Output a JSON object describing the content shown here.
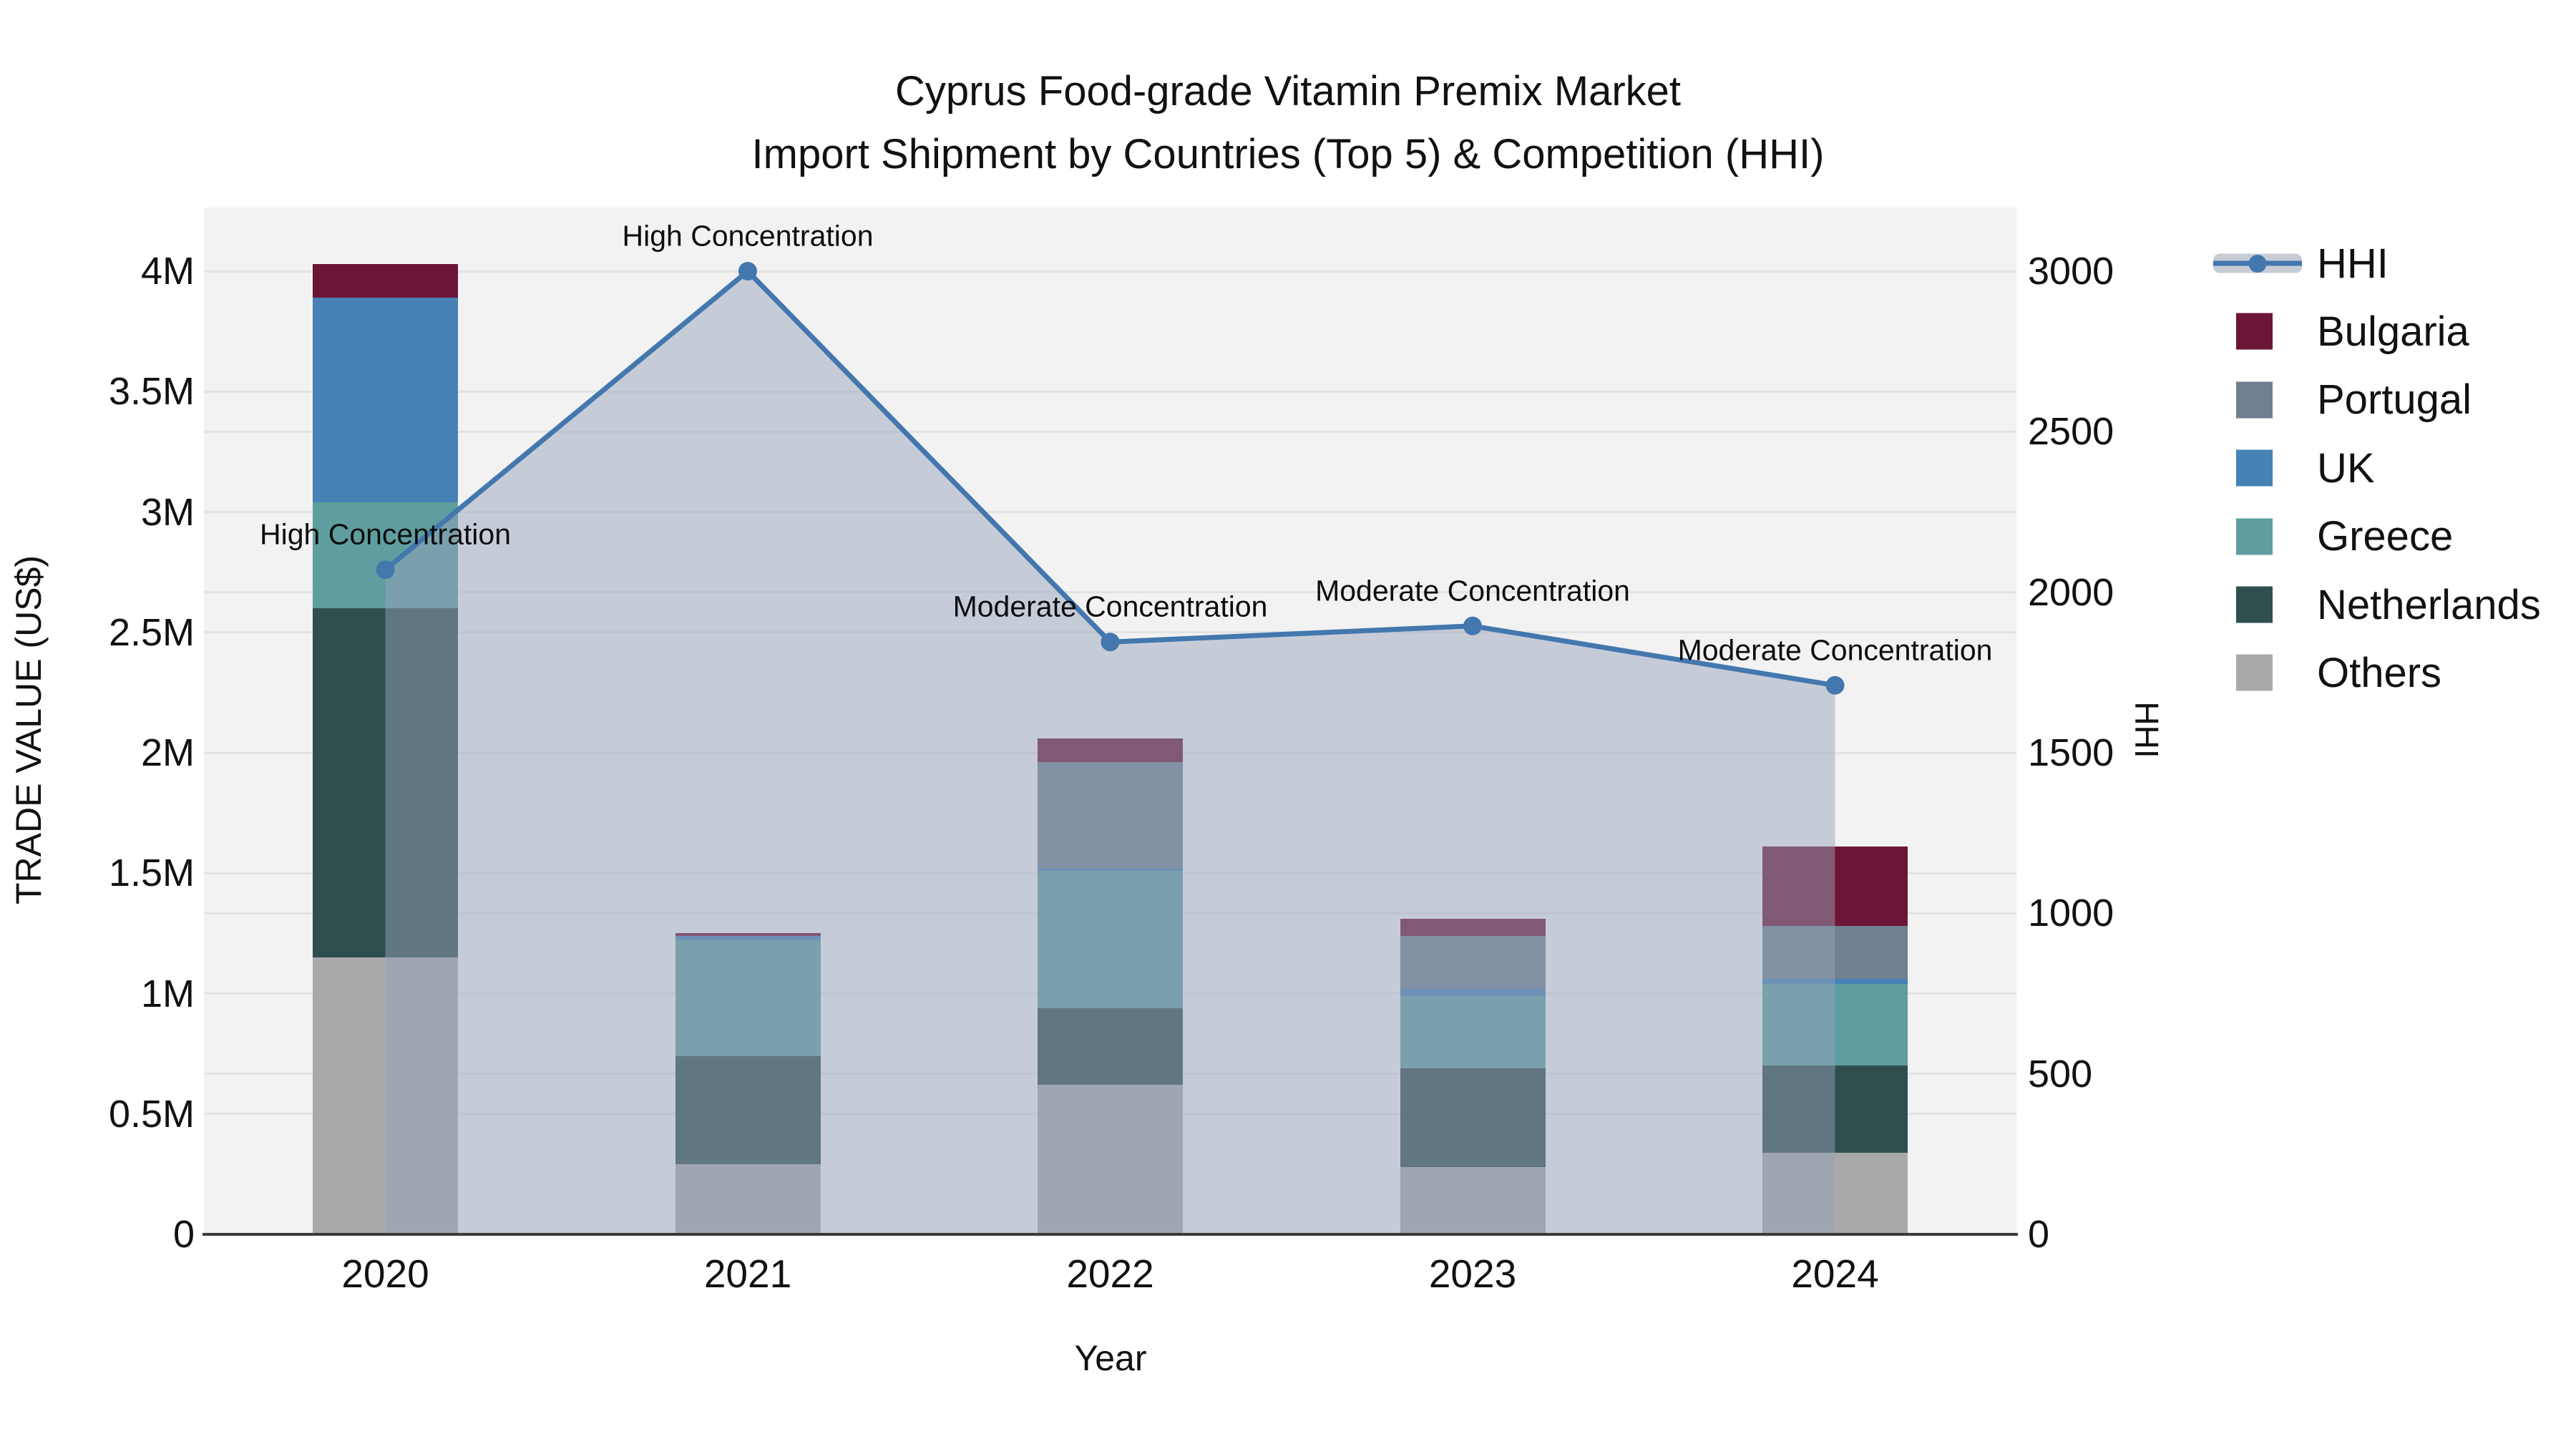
{
  "title": {
    "line1": "Cyprus Food-grade Vitamin Premix Market",
    "line2": "Import Shipment by Countries (Top 5) & Competition (HHI)"
  },
  "axes": {
    "left": {
      "title": "TRADE VALUE (US$)",
      "tick_labels": [
        "0",
        "0.5M",
        "1M",
        "1.5M",
        "2M",
        "2.5M",
        "3M",
        "3.5M",
        "4M"
      ],
      "tick_values_musd": [
        0,
        0.5,
        1,
        1.5,
        2,
        2.5,
        3,
        3.5,
        4
      ]
    },
    "right": {
      "title": "HHI",
      "tick_labels": [
        "0",
        "500",
        "1000",
        "1500",
        "2000",
        "2500",
        "3000"
      ],
      "tick_values": [
        0,
        500,
        1000,
        1500,
        2000,
        2500,
        3000
      ]
    },
    "x": {
      "title": "Year",
      "categories": [
        "2020",
        "2021",
        "2022",
        "2023",
        "2024"
      ]
    }
  },
  "legend": {
    "items": [
      {
        "id": "hhi",
        "label": "HHI",
        "swatch": "line-marker",
        "color": "#4377AE",
        "band_color": "#C6CBD4"
      },
      {
        "id": "bulgaria",
        "label": "Bulgaria",
        "swatch": "square",
        "color": "#6B1637"
      },
      {
        "id": "portugal",
        "label": "Portugal",
        "swatch": "square",
        "color": "#708090"
      },
      {
        "id": "uk",
        "label": "UK",
        "swatch": "square",
        "color": "#4682B4"
      },
      {
        "id": "greece",
        "label": "Greece",
        "swatch": "square",
        "color": "#5F9EA0"
      },
      {
        "id": "netherlands",
        "label": "Netherlands",
        "swatch": "square",
        "color": "#2F4F4F"
      },
      {
        "id": "others",
        "label": "Others",
        "swatch": "square",
        "color": "#A9A9A9"
      }
    ]
  },
  "colors": {
    "plot_background": "#F2F2F2",
    "grid": "#E3E3E5",
    "axis_line": "#3A3A3A",
    "hhi_line": "#4377AE",
    "area_fill": "rgba(151,164,186,0.48)",
    "text": "#111111"
  },
  "chart_data": {
    "type": "combo",
    "title": "Cyprus Food-grade Vitamin Premix Market — Import Shipment by Countries (Top 5) & Competition (HHI)",
    "categories": [
      "2020",
      "2021",
      "2022",
      "2023",
      "2024"
    ],
    "bar_unit": "million US$ (left axis, TRADE VALUE)",
    "bar_stack_order_bottom_to_top": [
      "Others",
      "Netherlands",
      "Greece",
      "UK",
      "Portugal",
      "Bulgaria"
    ],
    "series": [
      {
        "name": "Others",
        "color": "#A9A9A9",
        "values": [
          1.15,
          0.29,
          0.62,
          0.28,
          0.34
        ]
      },
      {
        "name": "Netherlands",
        "color": "#2F4F4F",
        "values": [
          1.45,
          0.45,
          0.32,
          0.41,
          0.36
        ]
      },
      {
        "name": "Greece",
        "color": "#5F9EA0",
        "values": [
          0.44,
          0.48,
          0.57,
          0.3,
          0.34
        ]
      },
      {
        "name": "UK",
        "color": "#4682B4",
        "values": [
          0.85,
          0.02,
          0.01,
          0.03,
          0.02
        ]
      },
      {
        "name": "Portugal",
        "color": "#708090",
        "values": [
          0.0,
          0.0,
          0.44,
          0.22,
          0.22
        ]
      },
      {
        "name": "Bulgaria",
        "color": "#6B1637",
        "values": [
          0.14,
          0.01,
          0.1,
          0.07,
          0.33
        ]
      }
    ],
    "bar_totals_musd": [
      4.03,
      1.25,
      2.06,
      1.31,
      1.61
    ],
    "line_series": {
      "name": "HHI",
      "axis": "right",
      "color": "#4377AE",
      "area_fill": "rgba(151,164,186,0.48)",
      "values": [
        2070,
        3000,
        1845,
        1895,
        1710
      ]
    },
    "annotations": [
      {
        "category": "2020",
        "text": "High Concentration"
      },
      {
        "category": "2021",
        "text": "High Concentration"
      },
      {
        "category": "2022",
        "text": "Moderate Concentration"
      },
      {
        "category": "2023",
        "text": "Moderate Concentration"
      },
      {
        "category": "2024",
        "text": "Moderate Concentration"
      }
    ],
    "ylim_left_musd": [
      0,
      4.27
    ],
    "ylim_right": [
      0,
      3200
    ],
    "grid": true,
    "legend_position": "right"
  }
}
